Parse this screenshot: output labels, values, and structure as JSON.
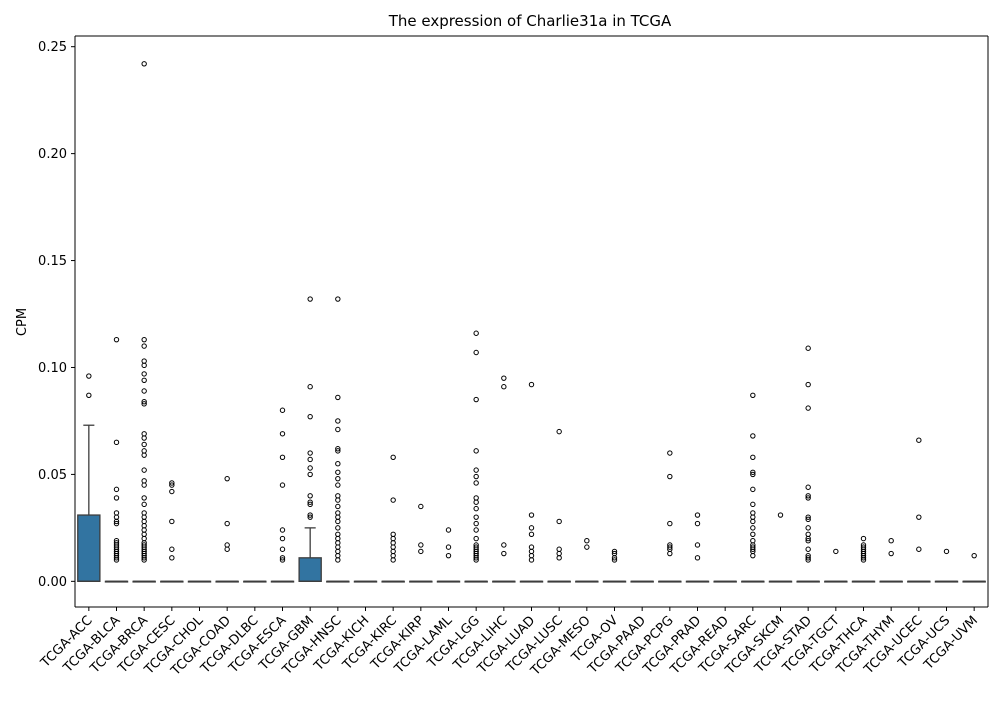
{
  "chart_data": {
    "type": "box",
    "title": "The expression of Charlie31a in TCGA",
    "xlabel": "",
    "ylabel": "CPM",
    "ylim": [
      -0.012,
      0.255
    ],
    "yticks": [
      "0.00",
      "0.05",
      "0.10",
      "0.15",
      "0.20",
      "0.25"
    ],
    "ytick_values": [
      0.0,
      0.05,
      0.1,
      0.15,
      0.2,
      0.25
    ],
    "grid": false,
    "box_color": "#3274a1",
    "categories": [
      "TCGA-ACC",
      "TCGA-BLCA",
      "TCGA-BRCA",
      "TCGA-CESC",
      "TCGA-CHOL",
      "TCGA-COAD",
      "TCGA-DLBC",
      "TCGA-ESCA",
      "TCGA-GBM",
      "TCGA-HNSC",
      "TCGA-KICH",
      "TCGA-KIRC",
      "TCGA-KIRP",
      "TCGA-LAML",
      "TCGA-LGG",
      "TCGA-LIHC",
      "TCGA-LUAD",
      "TCGA-LUSC",
      "TCGA-MESO",
      "TCGA-OV",
      "TCGA-PAAD",
      "TCGA-PCPG",
      "TCGA-PRAD",
      "TCGA-READ",
      "TCGA-SARC",
      "TCGA-SKCM",
      "TCGA-STAD",
      "TCGA-TGCT",
      "TCGA-THCA",
      "TCGA-THYM",
      "TCGA-UCEC",
      "TCGA-UCS",
      "TCGA-UVM"
    ],
    "boxes": [
      {
        "q1": 0.0,
        "median": 0.0,
        "q3": 0.031,
        "whisker_low": 0.0,
        "whisker_high": 0.073,
        "outliers": [
          0.096,
          0.087
        ]
      },
      {
        "q1": 0.0,
        "median": 0.0,
        "q3": 0.0,
        "whisker_low": 0.0,
        "whisker_high": 0.0,
        "outliers": [
          0.113,
          0.065,
          0.043,
          0.039,
          0.032,
          0.03,
          0.028,
          0.027,
          0.019,
          0.018,
          0.017,
          0.016,
          0.015,
          0.014,
          0.013,
          0.012,
          0.011,
          0.01
        ]
      },
      {
        "q1": 0.0,
        "median": 0.0,
        "q3": 0.0,
        "whisker_low": 0.0,
        "whisker_high": 0.0,
        "outliers": [
          0.242,
          0.113,
          0.11,
          0.103,
          0.101,
          0.097,
          0.094,
          0.089,
          0.084,
          0.083,
          0.069,
          0.067,
          0.064,
          0.061,
          0.059,
          0.052,
          0.047,
          0.045,
          0.039,
          0.036,
          0.032,
          0.03,
          0.028,
          0.026,
          0.024,
          0.022,
          0.02,
          0.018,
          0.017,
          0.016,
          0.015,
          0.014,
          0.013,
          0.012,
          0.011,
          0.01
        ]
      },
      {
        "q1": 0.0,
        "median": 0.0,
        "q3": 0.0,
        "whisker_low": 0.0,
        "whisker_high": 0.0,
        "outliers": [
          0.046,
          0.045,
          0.042,
          0.028,
          0.015,
          0.011
        ]
      },
      {
        "q1": 0.0,
        "median": 0.0,
        "q3": 0.0,
        "whisker_low": 0.0,
        "whisker_high": 0.0,
        "outliers": []
      },
      {
        "q1": 0.0,
        "median": 0.0,
        "q3": 0.0,
        "whisker_low": 0.0,
        "whisker_high": 0.0,
        "outliers": [
          0.048,
          0.027,
          0.017,
          0.015
        ]
      },
      {
        "q1": 0.0,
        "median": 0.0,
        "q3": 0.0,
        "whisker_low": 0.0,
        "whisker_high": 0.0,
        "outliers": []
      },
      {
        "q1": 0.0,
        "median": 0.0,
        "q3": 0.0,
        "whisker_low": 0.0,
        "whisker_high": 0.0,
        "outliers": [
          0.08,
          0.069,
          0.058,
          0.045,
          0.024,
          0.02,
          0.015,
          0.011,
          0.01
        ]
      },
      {
        "q1": 0.0,
        "median": 0.0,
        "q3": 0.011,
        "whisker_low": 0.0,
        "whisker_high": 0.025,
        "outliers": [
          0.132,
          0.091,
          0.077,
          0.06,
          0.057,
          0.053,
          0.05,
          0.04,
          0.037,
          0.036,
          0.031,
          0.03
        ]
      },
      {
        "q1": 0.0,
        "median": 0.0,
        "q3": 0.0,
        "whisker_low": 0.0,
        "whisker_high": 0.0,
        "outliers": [
          0.132,
          0.086,
          0.075,
          0.071,
          0.062,
          0.061,
          0.055,
          0.051,
          0.048,
          0.045,
          0.04,
          0.038,
          0.035,
          0.032,
          0.03,
          0.028,
          0.025,
          0.022,
          0.02,
          0.018,
          0.016,
          0.014,
          0.012,
          0.01
        ]
      },
      {
        "q1": 0.0,
        "median": 0.0,
        "q3": 0.0,
        "whisker_low": 0.0,
        "whisker_high": 0.0,
        "outliers": []
      },
      {
        "q1": 0.0,
        "median": 0.0,
        "q3": 0.0,
        "whisker_low": 0.0,
        "whisker_high": 0.0,
        "outliers": [
          0.058,
          0.038,
          0.022,
          0.02,
          0.018,
          0.016,
          0.014,
          0.012,
          0.01
        ]
      },
      {
        "q1": 0.0,
        "median": 0.0,
        "q3": 0.0,
        "whisker_low": 0.0,
        "whisker_high": 0.0,
        "outliers": [
          0.035,
          0.017,
          0.014
        ]
      },
      {
        "q1": 0.0,
        "median": 0.0,
        "q3": 0.0,
        "whisker_low": 0.0,
        "whisker_high": 0.0,
        "outliers": [
          0.024,
          0.016,
          0.012
        ]
      },
      {
        "q1": 0.0,
        "median": 0.0,
        "q3": 0.0,
        "whisker_low": 0.0,
        "whisker_high": 0.0,
        "outliers": [
          0.116,
          0.107,
          0.085,
          0.061,
          0.052,
          0.049,
          0.046,
          0.039,
          0.037,
          0.034,
          0.03,
          0.027,
          0.024,
          0.02,
          0.017,
          0.016,
          0.015,
          0.014,
          0.013,
          0.012,
          0.011,
          0.01
        ]
      },
      {
        "q1": 0.0,
        "median": 0.0,
        "q3": 0.0,
        "whisker_low": 0.0,
        "whisker_high": 0.0,
        "outliers": [
          0.095,
          0.091,
          0.017,
          0.013
        ]
      },
      {
        "q1": 0.0,
        "median": 0.0,
        "q3": 0.0,
        "whisker_low": 0.0,
        "whisker_high": 0.0,
        "outliers": [
          0.092,
          0.031,
          0.025,
          0.022,
          0.016,
          0.014,
          0.012,
          0.01
        ]
      },
      {
        "q1": 0.0,
        "median": 0.0,
        "q3": 0.0,
        "whisker_low": 0.0,
        "whisker_high": 0.0,
        "outliers": [
          0.07,
          0.028,
          0.015,
          0.013,
          0.011
        ]
      },
      {
        "q1": 0.0,
        "median": 0.0,
        "q3": 0.0,
        "whisker_low": 0.0,
        "whisker_high": 0.0,
        "outliers": [
          0.019,
          0.016
        ]
      },
      {
        "q1": 0.0,
        "median": 0.0,
        "q3": 0.0,
        "whisker_low": 0.0,
        "whisker_high": 0.0,
        "outliers": [
          0.014,
          0.013,
          0.011,
          0.01
        ]
      },
      {
        "q1": 0.0,
        "median": 0.0,
        "q3": 0.0,
        "whisker_low": 0.0,
        "whisker_high": 0.0,
        "outliers": []
      },
      {
        "q1": 0.0,
        "median": 0.0,
        "q3": 0.0,
        "whisker_low": 0.0,
        "whisker_high": 0.0,
        "outliers": [
          0.06,
          0.049,
          0.027,
          0.017,
          0.016,
          0.015,
          0.013
        ]
      },
      {
        "q1": 0.0,
        "median": 0.0,
        "q3": 0.0,
        "whisker_low": 0.0,
        "whisker_high": 0.0,
        "outliers": [
          0.031,
          0.027,
          0.017,
          0.011
        ]
      },
      {
        "q1": 0.0,
        "median": 0.0,
        "q3": 0.0,
        "whisker_low": 0.0,
        "whisker_high": 0.0,
        "outliers": []
      },
      {
        "q1": 0.0,
        "median": 0.0,
        "q3": 0.0,
        "whisker_low": 0.0,
        "whisker_high": 0.0,
        "outliers": [
          0.087,
          0.068,
          0.058,
          0.051,
          0.05,
          0.043,
          0.036,
          0.032,
          0.03,
          0.028,
          0.025,
          0.022,
          0.019,
          0.017,
          0.016,
          0.015,
          0.014,
          0.012
        ]
      },
      {
        "q1": 0.0,
        "median": 0.0,
        "q3": 0.0,
        "whisker_low": 0.0,
        "whisker_high": 0.0,
        "outliers": [
          0.031
        ]
      },
      {
        "q1": 0.0,
        "median": 0.0,
        "q3": 0.0,
        "whisker_low": 0.0,
        "whisker_high": 0.0,
        "outliers": [
          0.109,
          0.092,
          0.081,
          0.044,
          0.04,
          0.039,
          0.03,
          0.029,
          0.025,
          0.022,
          0.02,
          0.019,
          0.015,
          0.012,
          0.011,
          0.01
        ]
      },
      {
        "q1": 0.0,
        "median": 0.0,
        "q3": 0.0,
        "whisker_low": 0.0,
        "whisker_high": 0.0,
        "outliers": [
          0.014
        ]
      },
      {
        "q1": 0.0,
        "median": 0.0,
        "q3": 0.0,
        "whisker_low": 0.0,
        "whisker_high": 0.0,
        "outliers": [
          0.02,
          0.017,
          0.016,
          0.015,
          0.014,
          0.013,
          0.012,
          0.011,
          0.01
        ]
      },
      {
        "q1": 0.0,
        "median": 0.0,
        "q3": 0.0,
        "whisker_low": 0.0,
        "whisker_high": 0.0,
        "outliers": [
          0.019,
          0.013
        ]
      },
      {
        "q1": 0.0,
        "median": 0.0,
        "q3": 0.0,
        "whisker_low": 0.0,
        "whisker_high": 0.0,
        "outliers": [
          0.066,
          0.03,
          0.015
        ]
      },
      {
        "q1": 0.0,
        "median": 0.0,
        "q3": 0.0,
        "whisker_low": 0.0,
        "whisker_high": 0.0,
        "outliers": [
          0.014
        ]
      },
      {
        "q1": 0.0,
        "median": 0.0,
        "q3": 0.0,
        "whisker_low": 0.0,
        "whisker_high": 0.0,
        "outliers": [
          0.012
        ]
      }
    ]
  }
}
